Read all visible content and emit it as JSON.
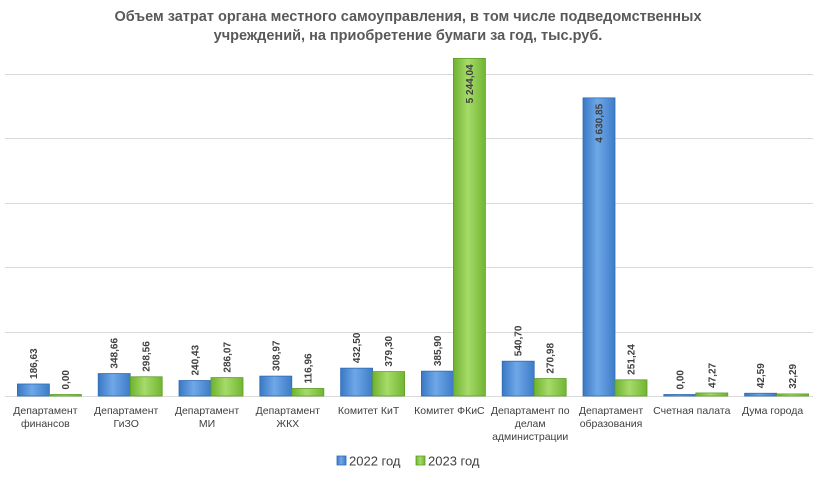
{
  "chart_data": {
    "type": "bar",
    "title": "Объем затрат органа местного самоуправления, в том числе подведомственных учреждений, на приобретение бумаги за год, тыс.руб.",
    "title_lines": [
      "Объем затрат органа местного самоуправления, в том числе подведомственных",
      "учреждений, на приобретение бумаги за год, тыс.руб."
    ],
    "categories": [
      "Департамент финансов",
      "Департамент ГиЗО",
      "Департамент МИ",
      "Департамент ЖКХ",
      "Комитет КиТ",
      "Комитет ФКиС",
      "Департамент по делам администрации",
      "Департамент образования",
      "Счетная палата",
      "Дума города"
    ],
    "category_label_lines": [
      [
        "Департамент",
        "финансов"
      ],
      [
        "Департамент",
        "ГиЗО"
      ],
      [
        "Департамент",
        "МИ"
      ],
      [
        "Департамент",
        "ЖКХ"
      ],
      [
        "Комитет КиТ"
      ],
      [
        "Комитет ФКиС"
      ],
      [
        "Департамент по",
        "делам",
        "администрации"
      ],
      [
        "Департамент",
        "образования"
      ],
      [
        "Счетная палата"
      ],
      [
        "Дума города"
      ]
    ],
    "series": [
      {
        "name": "2022 год",
        "values": [
          186.63,
          348.66,
          240.43,
          308.97,
          432.5,
          385.9,
          540.7,
          4630.85,
          0.0,
          42.59
        ],
        "labels": [
          "186,63",
          "348,66",
          "240,43",
          "308,97",
          "432,50",
          "385,90",
          "540,70",
          "4 630,85",
          "0,00",
          "42,59"
        ]
      },
      {
        "name": "2023 год",
        "values": [
          0.0,
          298.56,
          286.07,
          116.96,
          379.3,
          5244.04,
          270.98,
          251.24,
          47.27,
          32.29
        ],
        "labels": [
          "0,00",
          "298,56",
          "286,07",
          "116,96",
          "379,30",
          "5 244,04",
          "270,98",
          "251,24",
          "47,27",
          "32,29"
        ]
      }
    ],
    "ylim": [
      0,
      5250
    ],
    "grid": true,
    "legend_position": "bottom",
    "colors": {
      "series_2022": "#4F8FD6",
      "series_2022_dark": "#2E6CB5",
      "series_2023": "#8CCB4A",
      "series_2023_dark": "#5E9E26",
      "grid": "#D9D9D9",
      "text": "#404040",
      "title": "#595959"
    }
  }
}
